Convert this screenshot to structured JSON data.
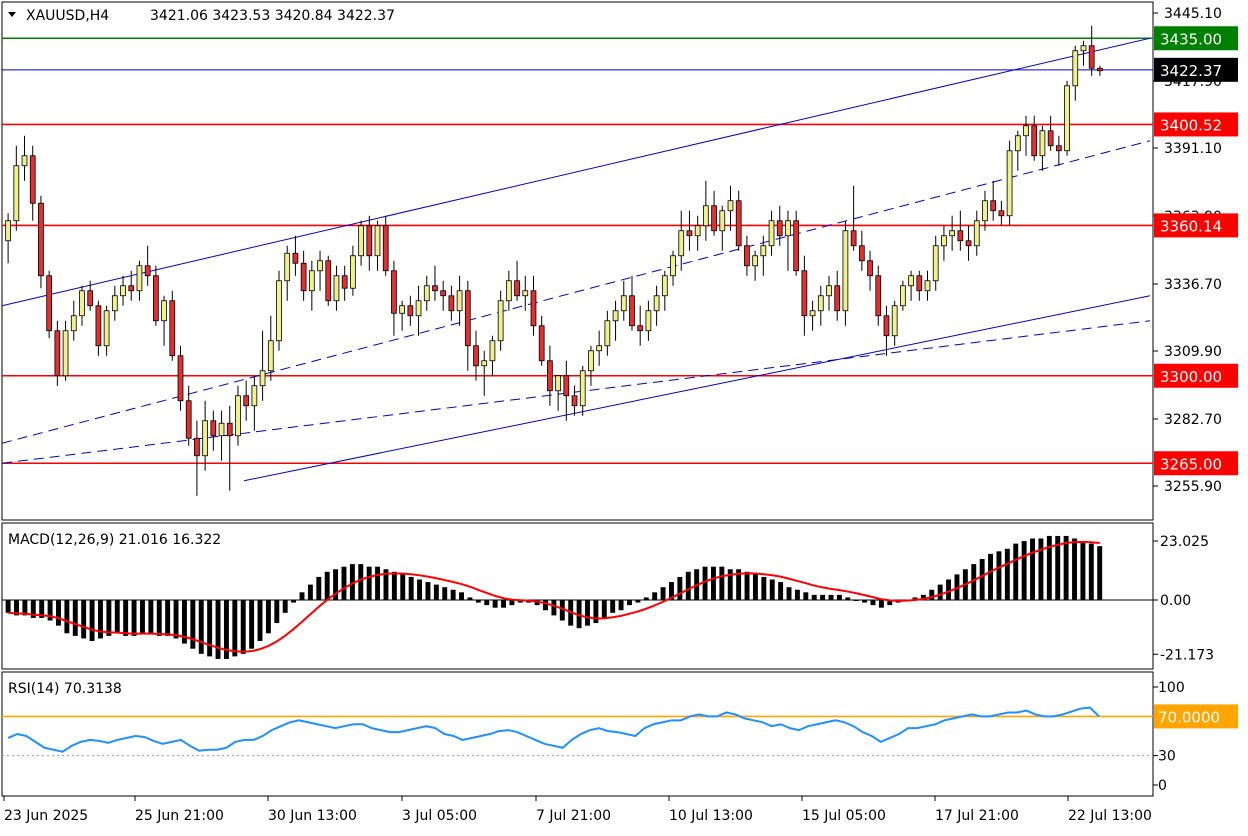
{
  "header": {
    "symbol": "XAUUSD,H4",
    "ohlc": "3421.06 3423.53 3420.84 3422.37"
  },
  "price_panel": {
    "yticks": [
      "3445.10",
      "3417.90",
      "3391.10",
      "3363.90",
      "3336.70",
      "3309.90",
      "3282.70",
      "3255.90"
    ],
    "levels": [
      {
        "label": "3435.00",
        "value": 3435.0,
        "color": "#008000"
      },
      {
        "label": "3400.52",
        "value": 3400.52,
        "color": "#ff0000"
      },
      {
        "label": "3360.14",
        "value": 3360.14,
        "color": "#ff0000"
      },
      {
        "label": "3300.00",
        "value": 3300.0,
        "color": "#ff0000"
      },
      {
        "label": "3265.00",
        "value": 3265.0,
        "color": "#ff0000"
      }
    ],
    "current": {
      "label": "3422.37",
      "value": 3422.37
    }
  },
  "macd_panel": {
    "label": "MACD(12,26,9) 21.016 16.322",
    "yticks": [
      "23.025",
      "0.00",
      "-21.173"
    ]
  },
  "rsi_panel": {
    "label": "RSI(14) 70.3138",
    "yticks": [
      "100",
      "30",
      "0"
    ],
    "level_label": "70.0000"
  },
  "xaxis": {
    "labels": [
      "23 Jun 2025",
      "25 Jun 21:00",
      "30 Jun 13:00",
      "3 Jul 05:00",
      "7 Jul 21:00",
      "10 Jul 13:00",
      "15 Jul 05:00",
      "17 Jul 21:00",
      "22 Jul 13:00"
    ]
  },
  "colors": {
    "bull_fill": "#f0f08c",
    "bear_fill": "#e03030",
    "trend": "#0000cc",
    "signal": "#ff0000",
    "hist": "#000000",
    "rsi": "#1e90ff",
    "rsi_level": "#ffa500"
  },
  "chart_data": [
    {
      "type": "candlestick",
      "title": "XAUUSD,H4",
      "ylim": [
        3248,
        3450
      ],
      "candles": [
        [
          3354,
          3365,
          3345,
          3362
        ],
        [
          3362,
          3392,
          3358,
          3384
        ],
        [
          3384,
          3396,
          3378,
          3388
        ],
        [
          3388,
          3392,
          3362,
          3369
        ],
        [
          3369,
          3372,
          3335,
          3340
        ],
        [
          3340,
          3342,
          3315,
          3318
        ],
        [
          3318,
          3322,
          3296,
          3300
        ],
        [
          3300,
          3322,
          3298,
          3318
        ],
        [
          3318,
          3330,
          3314,
          3324
        ],
        [
          3324,
          3336,
          3320,
          3334
        ],
        [
          3334,
          3338,
          3326,
          3328
        ],
        [
          3328,
          3330,
          3308,
          3312
        ],
        [
          3312,
          3328,
          3308,
          3326
        ],
        [
          3326,
          3336,
          3322,
          3332
        ],
        [
          3332,
          3340,
          3328,
          3336
        ],
        [
          3336,
          3342,
          3330,
          3334
        ],
        [
          3334,
          3346,
          3330,
          3344
        ],
        [
          3344,
          3352,
          3336,
          3340
        ],
        [
          3340,
          3344,
          3320,
          3322
        ],
        [
          3322,
          3332,
          3312,
          3330
        ],
        [
          3330,
          3334,
          3306,
          3308
        ],
        [
          3308,
          3312,
          3286,
          3290
        ],
        [
          3290,
          3296,
          3272,
          3275
        ],
        [
          3275,
          3282,
          3252,
          3268
        ],
        [
          3268,
          3290,
          3262,
          3282
        ],
        [
          3282,
          3286,
          3270,
          3276
        ],
        [
          3276,
          3286,
          3266,
          3281
        ],
        [
          3281,
          3288,
          3254,
          3276
        ],
        [
          3276,
          3296,
          3272,
          3292
        ],
        [
          3292,
          3298,
          3282,
          3288
        ],
        [
          3288,
          3300,
          3278,
          3296
        ],
        [
          3296,
          3318,
          3290,
          3302
        ],
        [
          3302,
          3324,
          3298,
          3314
        ],
        [
          3314,
          3342,
          3310,
          3338
        ],
        [
          3338,
          3352,
          3330,
          3349
        ],
        [
          3349,
          3356,
          3340,
          3345
        ],
        [
          3345,
          3350,
          3330,
          3334
        ],
        [
          3334,
          3346,
          3326,
          3342
        ],
        [
          3342,
          3350,
          3334,
          3346
        ],
        [
          3346,
          3348,
          3328,
          3330
        ],
        [
          3330,
          3344,
          3326,
          3340
        ],
        [
          3340,
          3344,
          3330,
          3335
        ],
        [
          3335,
          3352,
          3332,
          3348
        ],
        [
          3348,
          3362,
          3344,
          3360
        ],
        [
          3360,
          3364,
          3342,
          3348
        ],
        [
          3348,
          3362,
          3342,
          3360
        ],
        [
          3360,
          3364,
          3340,
          3342
        ],
        [
          3342,
          3346,
          3316,
          3325
        ],
        [
          3325,
          3330,
          3318,
          3328
        ],
        [
          3328,
          3332,
          3320,
          3324
        ],
        [
          3324,
          3336,
          3316,
          3330
        ],
        [
          3330,
          3340,
          3326,
          3336
        ],
        [
          3336,
          3344,
          3330,
          3334
        ],
        [
          3334,
          3338,
          3326,
          3332
        ],
        [
          3332,
          3336,
          3322,
          3326
        ],
        [
          3326,
          3340,
          3320,
          3334
        ],
        [
          3334,
          3338,
          3302,
          3312
        ],
        [
          3312,
          3318,
          3298,
          3304
        ],
        [
          3304,
          3310,
          3292,
          3306
        ],
        [
          3306,
          3316,
          3300,
          3314
        ],
        [
          3314,
          3334,
          3310,
          3330
        ],
        [
          3330,
          3342,
          3326,
          3338
        ],
        [
          3338,
          3346,
          3330,
          3332
        ],
        [
          3332,
          3340,
          3326,
          3334
        ],
        [
          3334,
          3340,
          3316,
          3320
        ],
        [
          3320,
          3324,
          3304,
          3306
        ],
        [
          3306,
          3312,
          3288,
          3294
        ],
        [
          3294,
          3300,
          3286,
          3300
        ],
        [
          3300,
          3306,
          3282,
          3292
        ],
        [
          3292,
          3296,
          3284,
          3288
        ],
        [
          3288,
          3304,
          3284,
          3302
        ],
        [
          3302,
          3312,
          3296,
          3310
        ],
        [
          3310,
          3318,
          3304,
          3312
        ],
        [
          3312,
          3326,
          3308,
          3322
        ],
        [
          3322,
          3330,
          3314,
          3326
        ],
        [
          3326,
          3338,
          3322,
          3332
        ],
        [
          3332,
          3340,
          3318,
          3320
        ],
        [
          3320,
          3328,
          3312,
          3318
        ],
        [
          3318,
          3330,
          3314,
          3326
        ],
        [
          3326,
          3336,
          3320,
          3332
        ],
        [
          3332,
          3342,
          3326,
          3340
        ],
        [
          3340,
          3350,
          3336,
          3348
        ],
        [
          3348,
          3366,
          3342,
          3358
        ],
        [
          3358,
          3366,
          3350,
          3356
        ],
        [
          3356,
          3364,
          3350,
          3360
        ],
        [
          3360,
          3378,
          3354,
          3368
        ],
        [
          3368,
          3374,
          3356,
          3358
        ],
        [
          3358,
          3368,
          3350,
          3366
        ],
        [
          3366,
          3376,
          3358,
          3370
        ],
        [
          3370,
          3374,
          3350,
          3352
        ],
        [
          3352,
          3356,
          3340,
          3344
        ],
        [
          3344,
          3350,
          3338,
          3348
        ],
        [
          3348,
          3356,
          3340,
          3352
        ],
        [
          3352,
          3366,
          3348,
          3362
        ],
        [
          3362,
          3368,
          3352,
          3356
        ],
        [
          3356,
          3366,
          3342,
          3362
        ],
        [
          3362,
          3366,
          3340,
          3342
        ],
        [
          3342,
          3348,
          3316,
          3324
        ],
        [
          3324,
          3330,
          3318,
          3326
        ],
        [
          3326,
          3336,
          3320,
          3332
        ],
        [
          3332,
          3340,
          3326,
          3336
        ],
        [
          3336,
          3342,
          3322,
          3326
        ],
        [
          3326,
          3362,
          3320,
          3358
        ],
        [
          3358,
          3376,
          3350,
          3352
        ],
        [
          3352,
          3358,
          3342,
          3346
        ],
        [
          3346,
          3350,
          3334,
          3340
        ],
        [
          3340,
          3344,
          3320,
          3324
        ],
        [
          3324,
          3328,
          3308,
          3316
        ],
        [
          3316,
          3330,
          3312,
          3328
        ],
        [
          3328,
          3338,
          3326,
          3336
        ],
        [
          3336,
          3342,
          3330,
          3340
        ],
        [
          3340,
          3342,
          3330,
          3334
        ],
        [
          3334,
          3342,
          3330,
          3338
        ],
        [
          3338,
          3356,
          3334,
          3352
        ],
        [
          3352,
          3360,
          3346,
          3356
        ],
        [
          3356,
          3364,
          3350,
          3358
        ],
        [
          3358,
          3366,
          3350,
          3354
        ],
        [
          3354,
          3360,
          3346,
          3352
        ],
        [
          3352,
          3366,
          3348,
          3362
        ],
        [
          3362,
          3374,
          3358,
          3370
        ],
        [
          3370,
          3378,
          3362,
          3366
        ],
        [
          3366,
          3370,
          3360,
          3364
        ],
        [
          3364,
          3394,
          3360,
          3390
        ],
        [
          3390,
          3398,
          3382,
          3396
        ],
        [
          3396,
          3404,
          3388,
          3400
        ],
        [
          3400,
          3404,
          3386,
          3388
        ],
        [
          3388,
          3400,
          3382,
          3398
        ],
        [
          3398,
          3404,
          3390,
          3392
        ],
        [
          3392,
          3396,
          3384,
          3390
        ],
        [
          3390,
          3418,
          3388,
          3416
        ],
        [
          3416,
          3432,
          3410,
          3430
        ],
        [
          3430,
          3434,
          3424,
          3432
        ],
        [
          3432,
          3440,
          3420,
          3423
        ],
        [
          3423,
          3424,
          3420,
          3422
        ]
      ],
      "trendlines_note": "ascending channel"
    },
    {
      "type": "bar",
      "title": "MACD(12,26,9) 21.016 16.322",
      "ylim": [
        -26,
        27
      ],
      "values": [
        -5,
        -6,
        -6,
        -7,
        -7,
        -8,
        -10,
        -13,
        -14,
        -15,
        -16,
        -15,
        -14,
        -13,
        -14,
        -14,
        -13,
        -13,
        -14,
        -14,
        -15,
        -17,
        -19,
        -21,
        -22,
        -23,
        -23,
        -22,
        -21,
        -19,
        -16,
        -13,
        -9,
        -5,
        -1,
        3,
        6,
        9,
        11,
        12,
        13,
        14,
        14,
        13,
        13,
        12,
        11,
        10,
        9,
        8,
        7,
        6,
        5,
        4,
        3,
        1,
        -1,
        -2,
        -3,
        -3,
        -2,
        -1,
        -1,
        -2,
        -4,
        -6,
        -8,
        -10,
        -11,
        -10,
        -9,
        -7,
        -5,
        -4,
        -2,
        -1,
        1,
        3,
        5,
        7,
        9,
        11,
        12,
        13,
        13,
        13,
        12,
        12,
        11,
        10,
        9,
        8,
        7,
        5,
        4,
        3,
        2,
        2,
        2,
        2,
        1,
        0,
        -1,
        -2,
        -3,
        -2,
        -1,
        0,
        1,
        2,
        4,
        6,
        8,
        10,
        12,
        14,
        16,
        18,
        19,
        20,
        22,
        23,
        24,
        24,
        25,
        25,
        25,
        24,
        23,
        22,
        21
      ]
    },
    {
      "type": "line",
      "title": "RSI(14) 70.3138",
      "ylim": [
        0,
        100
      ],
      "levels": [
        70,
        30
      ],
      "values": [
        48,
        52,
        50,
        44,
        38,
        36,
        34,
        40,
        44,
        46,
        45,
        43,
        46,
        48,
        50,
        49,
        45,
        42,
        44,
        46,
        40,
        35,
        36,
        36,
        38,
        44,
        46,
        46,
        50,
        56,
        60,
        64,
        66,
        64,
        62,
        60,
        58,
        60,
        62,
        62,
        58,
        56,
        54,
        54,
        56,
        58,
        60,
        58,
        52,
        50,
        46,
        48,
        50,
        52,
        55,
        56,
        54,
        50,
        46,
        42,
        40,
        38,
        46,
        52,
        56,
        58,
        55,
        54,
        52,
        50,
        58,
        62,
        64,
        66,
        66,
        70,
        72,
        70,
        70,
        74,
        72,
        68,
        66,
        64,
        60,
        62,
        58,
        56,
        60,
        62,
        64,
        66,
        64,
        60,
        54,
        50,
        44,
        48,
        52,
        58,
        58,
        60,
        62,
        66,
        68,
        70,
        72,
        70,
        70,
        72,
        74,
        74,
        76,
        72,
        70,
        70,
        72,
        75,
        78,
        79,
        70
      ]
    }
  ]
}
